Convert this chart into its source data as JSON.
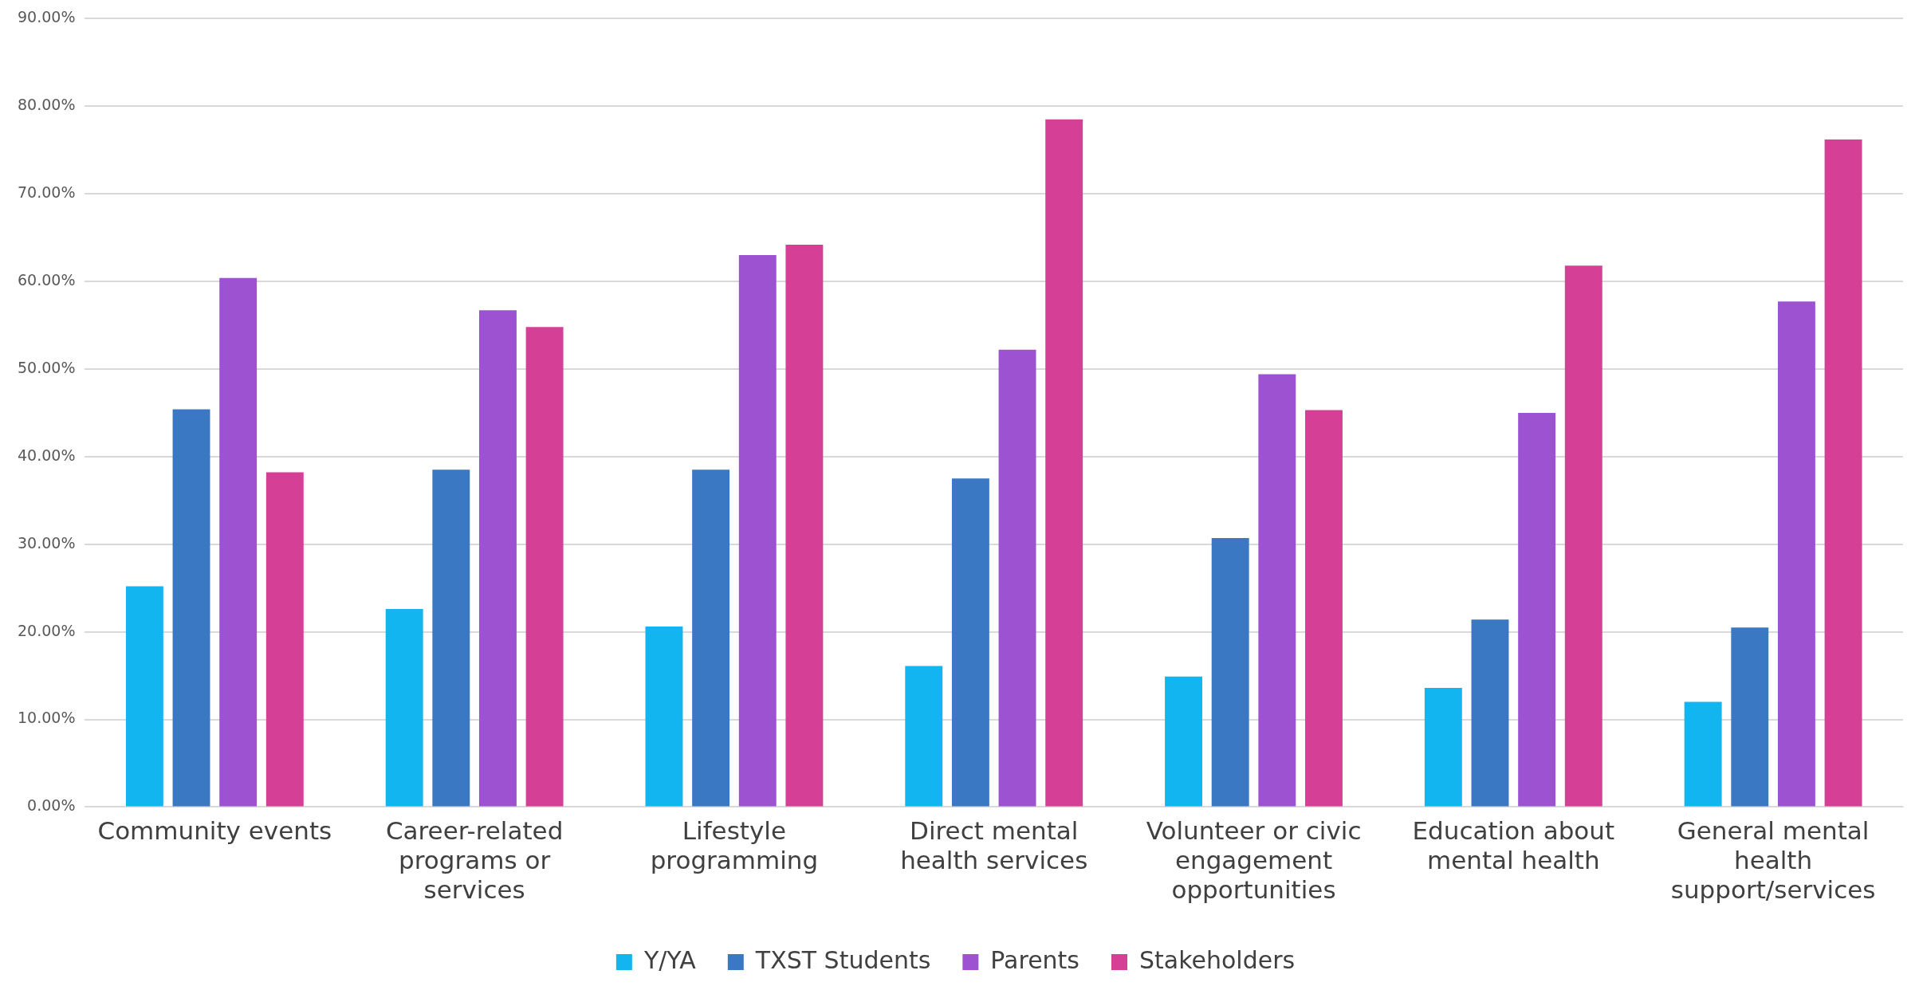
{
  "chart_data": {
    "type": "bar",
    "categories": [
      "Community events",
      "Career-related programs or services",
      "Lifestyle programming",
      "Direct mental health services",
      "Volunteer or civic engagement opportunities",
      "Education about mental health",
      "General mental health support/services"
    ],
    "series": [
      {
        "name": "Y/YA",
        "color": "#12b5ef",
        "values": [
          25.2,
          22.6,
          20.6,
          16.1,
          14.9,
          13.6,
          12.0
        ]
      },
      {
        "name": "TXST Students",
        "color": "#3b78c4",
        "values": [
          45.4,
          38.5,
          38.5,
          37.5,
          30.7,
          21.4,
          20.5
        ]
      },
      {
        "name": "Parents",
        "color": "#9c52d1",
        "values": [
          60.4,
          56.7,
          63.0,
          52.2,
          49.4,
          45.0,
          57.7
        ]
      },
      {
        "name": "Stakeholders",
        "color": "#d63f96",
        "values": [
          38.2,
          54.8,
          64.2,
          78.5,
          45.3,
          61.8,
          76.2
        ]
      }
    ],
    "ylim": [
      0,
      90
    ],
    "yticks": [
      {
        "value": 0,
        "label": "0.00%"
      },
      {
        "value": 10,
        "label": "10.00%"
      },
      {
        "value": 20,
        "label": "20.00%"
      },
      {
        "value": 30,
        "label": "30.00%"
      },
      {
        "value": 40,
        "label": "40.00%"
      },
      {
        "value": 50,
        "label": "50.00%"
      },
      {
        "value": 60,
        "label": "60.00%"
      },
      {
        "value": 70,
        "label": "70.00%"
      },
      {
        "value": 80,
        "label": "80.00%"
      },
      {
        "value": 90,
        "label": "90.00%"
      }
    ],
    "grid": "y",
    "legend": "bottom"
  }
}
